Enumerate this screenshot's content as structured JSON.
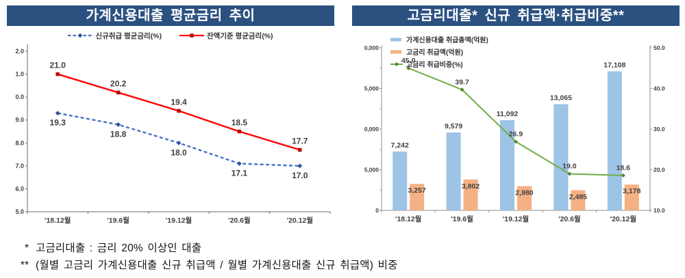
{
  "theme": {
    "banner_bg": "#2B5181",
    "banner_fg": "#FFFFFF",
    "axis_color": "#8C8C8C",
    "label_color": "#404040"
  },
  "left_panel": {
    "title": "가계신용대출 평균금리 추이"
  },
  "right_panel": {
    "title": "고금리대출*  신규 취급액·취급비중**"
  },
  "footnotes": [
    {
      "marker": "*",
      "text": "고금리대출 : 금리 20% 이상인 대출"
    },
    {
      "marker": "**",
      "text": "(월별 고금리 가계신용대출 신규 취급액 / 월별 가계신용대출 신규 취급액) 비중"
    }
  ],
  "chart_data": [
    {
      "id": "avg-rate-trend",
      "type": "line",
      "title": "가계신용대출 평균금리 추이",
      "categories": [
        "'18.12월",
        "'19.6월",
        "'19.12월",
        "'20.6월",
        "'20.12월"
      ],
      "series": [
        {
          "name": "신규취급 평균금리(%)",
          "values": [
            19.3,
            18.8,
            18.0,
            17.1,
            17.0
          ],
          "labels": [
            "19.3",
            "18.8",
            "18.0",
            "17.1",
            "17.0"
          ],
          "color": "#4472C4",
          "marker_color": "#2F5597",
          "line": "dashed",
          "marker": "diamond",
          "label_position": "below"
        },
        {
          "name": "잔액기준 평균금리(%)",
          "values": [
            21.0,
            20.2,
            19.4,
            18.5,
            17.7
          ],
          "labels": [
            "21.0",
            "20.2",
            "19.4",
            "18.5",
            "17.7"
          ],
          "color": "#FF0000",
          "marker_color": "#C00000",
          "line": "solid",
          "marker": "square",
          "label_position": "above"
        }
      ],
      "ylim": [
        15.0,
        22.0
      ],
      "ytick_values": [
        22,
        21,
        20,
        19,
        18,
        17,
        16,
        15
      ],
      "ytick_labels_visible": [
        "2.0",
        "1.0",
        "0.0",
        "9.0",
        "8.0",
        "7.0",
        "6.0",
        "5.0"
      ],
      "grid": false,
      "legend_position": "top-center"
    },
    {
      "id": "high-rate-loan-amounts",
      "type": "bar-line-combo",
      "title": "고금리대출* 신규 취급액·취급비중**",
      "categories": [
        "'18.12월",
        "'19.6월",
        "'19.12월",
        "'20.6월",
        "'20.12월"
      ],
      "series": [
        {
          "name": "가계신용대출 취급총액(억원)",
          "type": "bar",
          "axis": "left",
          "values": [
            7242,
            9579,
            11092,
            13065,
            17108
          ],
          "labels": [
            "7,242",
            "9,579",
            "11,092",
            "13,065",
            "17,108"
          ],
          "color": "#9DC3E6"
        },
        {
          "name": "고금리 취급액(억원)",
          "type": "bar",
          "axis": "left",
          "values": [
            3257,
            3802,
            2980,
            2485,
            3178
          ],
          "labels": [
            "3,257",
            "3,802",
            "2,980",
            "2,485",
            "3,178"
          ],
          "color": "#F4B183"
        },
        {
          "name": "고금리 취급비중(%)",
          "type": "line",
          "axis": "right",
          "values": [
            45.0,
            39.7,
            26.9,
            19.0,
            18.6
          ],
          "labels": [
            "45.0",
            "39.7",
            "26.9",
            "19.0",
            "18.6"
          ],
          "color": "#70AD47",
          "marker_color": "#548235"
        }
      ],
      "left_axis": {
        "min": 0,
        "max": 20000,
        "tick_step": 5000,
        "minor_tick_step": 2500,
        "tick_values": [
          20000,
          15000,
          10000,
          5000,
          0
        ],
        "tick_labels_visible": [
          "0,000",
          "5,000",
          "0,000",
          "5,000",
          "0"
        ]
      },
      "right_axis": {
        "min": 10,
        "max": 50,
        "tick_step": 10,
        "tick_labels": [
          "50.0",
          "40.0",
          "30.0",
          "20.0",
          "10.0"
        ]
      },
      "grid": false,
      "legend_position": "top-left-inside"
    }
  ]
}
